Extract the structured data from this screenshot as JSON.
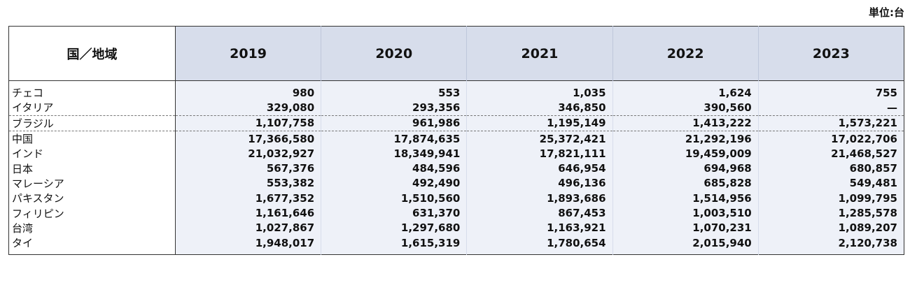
{
  "unit_label": "単位:台",
  "table": {
    "header": {
      "first": "国／地域",
      "years": [
        "2019",
        "2020",
        "2021",
        "2022",
        "2023"
      ]
    },
    "rows": [
      {
        "name": "チェコ",
        "values": [
          "980",
          "553",
          "1,035",
          "1,624",
          "755"
        ]
      },
      {
        "name": "イタリア",
        "values": [
          "329,080",
          "293,356",
          "346,850",
          "390,560",
          "—"
        ]
      },
      {
        "name": "ブラジル",
        "values": [
          "1,107,758",
          "961,986",
          "1,195,149",
          "1,413,222",
          "1,573,221"
        ]
      },
      {
        "name": "中国",
        "values": [
          "17,366,580",
          "17,874,635",
          "25,372,421",
          "21,292,196",
          "17,022,706"
        ]
      },
      {
        "name": "インド",
        "values": [
          "21,032,927",
          "18,349,941",
          "17,821,111",
          "19,459,009",
          "21,468,527"
        ]
      },
      {
        "name": "日本",
        "values": [
          "567,376",
          "484,596",
          "646,954",
          "694,968",
          "680,857"
        ]
      },
      {
        "name": "マレーシア",
        "values": [
          "553,382",
          "492,490",
          "496,136",
          "685,828",
          "549,481"
        ]
      },
      {
        "name": "パキスタン",
        "values": [
          "1,677,352",
          "1,510,560",
          "1,893,686",
          "1,514,956",
          "1,099,795"
        ]
      },
      {
        "name": "フィリピン",
        "values": [
          "1,161,646",
          "631,370",
          "867,453",
          "1,003,510",
          "1,285,578"
        ]
      },
      {
        "name": "台湾",
        "values": [
          "1,027,867",
          "1,297,680",
          "1,163,921",
          "1,070,231",
          "1,089,207"
        ]
      },
      {
        "name": "タイ",
        "values": [
          "1,948,017",
          "1,615,319",
          "1,780,654",
          "2,015,940",
          "2,120,738"
        ]
      }
    ]
  }
}
